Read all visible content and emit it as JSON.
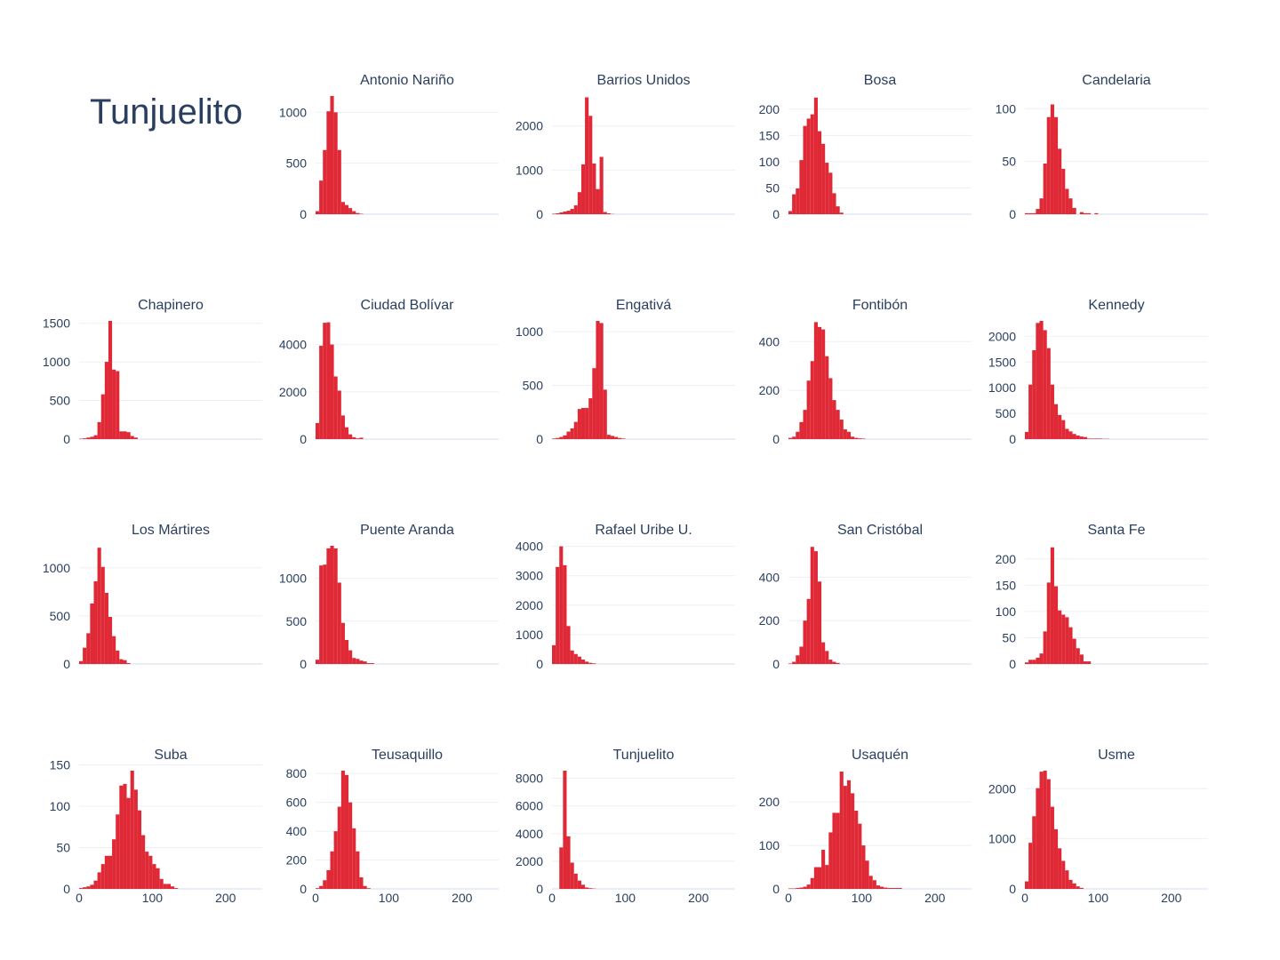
{
  "chart_data": {
    "type": "bar",
    "subtype": "histogram-grid",
    "title": "Tunjuelito",
    "colors": {
      "bar": "#e02936",
      "text": "#2a3f5f",
      "grid": "#ebf0f8"
    },
    "xlim": [
      0,
      250
    ],
    "bin_width": 5,
    "x_ticks": [
      0,
      100,
      200
    ],
    "x_tick_labels": [
      "0",
      "100",
      "200"
    ],
    "panels": [
      {
        "title": "Antonio Nariño",
        "ylim": [
          0,
          1160
        ],
        "y_ticks": [
          0,
          500,
          1000
        ],
        "y_tick_labels": [
          "0",
          "500",
          "1000"
        ],
        "bin_start": 0,
        "counts": [
          30,
          330,
          630,
          1010,
          1160,
          1000,
          630,
          120,
          90,
          60,
          30,
          12,
          4
        ]
      },
      {
        "title": "Barrios Unidos",
        "ylim": [
          0,
          2680
        ],
        "y_ticks": [
          0,
          1000,
          2000
        ],
        "y_tick_labels": [
          "0",
          "1000",
          "2000"
        ],
        "bin_start": 0,
        "counts": [
          10,
          20,
          40,
          60,
          80,
          120,
          200,
          500,
          1130,
          2650,
          2230,
          1150,
          570,
          1300,
          50,
          20,
          5
        ]
      },
      {
        "title": "Bosa",
        "ylim": [
          0,
          225
        ],
        "y_ticks": [
          0,
          50,
          100,
          150,
          200
        ],
        "y_tick_labels": [
          "0",
          "50",
          "100",
          "150",
          "200"
        ],
        "bin_start": 0,
        "counts": [
          6,
          38,
          49,
          103,
          168,
          182,
          190,
          222,
          158,
          134,
          98,
          79,
          40,
          15,
          3
        ]
      },
      {
        "title": "Candelaria",
        "ylim": [
          0,
          112
        ],
        "y_ticks": [
          0,
          50,
          100
        ],
        "y_tick_labels": [
          "0",
          "50",
          "100"
        ],
        "bin_start": 0,
        "counts": [
          1,
          1,
          1,
          5,
          15,
          48,
          92,
          104,
          92,
          62,
          43,
          24,
          15,
          6,
          0,
          2,
          1,
          1,
          0,
          1
        ]
      },
      {
        "title": "Chapinero",
        "ylim": [
          0,
          1530
        ],
        "y_ticks": [
          0,
          500,
          1000,
          1500
        ],
        "y_tick_labels": [
          "0",
          "500",
          "1000",
          "1500"
        ],
        "bin_start": 0,
        "counts": [
          5,
          10,
          20,
          30,
          50,
          220,
          580,
          1000,
          1530,
          900,
          880,
          100,
          100,
          90,
          40,
          20
        ]
      },
      {
        "title": "Ciudad Bolívar",
        "ylim": [
          0,
          5000
        ],
        "y_ticks": [
          0,
          2000,
          4000
        ],
        "y_tick_labels": [
          "0",
          "2000",
          "4000"
        ],
        "bin_start": 0,
        "counts": [
          680,
          3950,
          4920,
          4940,
          4000,
          2650,
          2050,
          1000,
          500,
          200,
          80,
          30,
          60
        ]
      },
      {
        "title": "Engativá",
        "ylim": [
          0,
          1100
        ],
        "y_ticks": [
          0,
          500,
          1000
        ],
        "y_tick_labels": [
          "0",
          "500",
          "1000"
        ],
        "bin_start": 0,
        "counts": [
          5,
          10,
          20,
          35,
          70,
          100,
          160,
          280,
          290,
          290,
          380,
          660,
          1100,
          1080,
          460,
          40,
          30,
          20,
          10,
          5
        ]
      },
      {
        "title": "Fontibón",
        "ylim": [
          0,
          485
        ],
        "y_ticks": [
          0,
          200,
          400
        ],
        "y_tick_labels": [
          "0",
          "200",
          "400"
        ],
        "bin_start": 0,
        "counts": [
          5,
          10,
          30,
          70,
          120,
          240,
          320,
          480,
          460,
          450,
          340,
          250,
          160,
          120,
          80,
          40,
          30,
          10,
          5,
          3,
          2
        ]
      },
      {
        "title": "Kennedy",
        "ylim": [
          0,
          2300
        ],
        "y_ticks": [
          0,
          500,
          1000,
          1500,
          2000
        ],
        "y_tick_labels": [
          "0",
          "500",
          "1000",
          "1500",
          "2000"
        ],
        "bin_start": 0,
        "counts": [
          140,
          1060,
          1730,
          2260,
          2300,
          2120,
          1770,
          1060,
          680,
          470,
          370,
          200,
          150,
          100,
          70,
          50,
          40,
          10,
          10,
          10,
          10,
          5,
          5
        ]
      },
      {
        "title": "Los Mártires",
        "ylim": [
          0,
          1230
        ],
        "y_ticks": [
          0,
          500,
          1000
        ],
        "y_tick_labels": [
          "0",
          "500",
          "1000"
        ],
        "bin_start": 0,
        "counts": [
          30,
          170,
          320,
          630,
          860,
          1210,
          1010,
          740,
          490,
          290,
          140,
          50,
          40,
          10
        ]
      },
      {
        "title": "Puente Aranda",
        "ylim": [
          0,
          1380
        ],
        "y_ticks": [
          0,
          500,
          1000
        ],
        "y_tick_labels": [
          "0",
          "500",
          "1000"
        ],
        "bin_start": 0,
        "counts": [
          50,
          1150,
          1160,
          1350,
          1380,
          1350,
          950,
          480,
          280,
          160,
          70,
          60,
          40,
          30,
          10,
          10
        ]
      },
      {
        "title": "Rafael Uribe U.",
        "ylim": [
          0,
          4020
        ],
        "y_ticks": [
          0,
          1000,
          2000,
          3000,
          4000
        ],
        "y_tick_labels": [
          "0",
          "1000",
          "2000",
          "3000",
          "4000"
        ],
        "bin_start": 0,
        "counts": [
          640,
          3300,
          4000,
          3360,
          1290,
          460,
          340,
          250,
          150,
          80,
          40,
          20
        ]
      },
      {
        "title": "San Cristóbal",
        "ylim": [
          0,
          545
        ],
        "y_ticks": [
          0,
          200,
          400
        ],
        "y_tick_labels": [
          "0",
          "200",
          "400"
        ],
        "bin_start": 0,
        "counts": [
          2,
          10,
          40,
          80,
          200,
          300,
          540,
          520,
          380,
          100,
          60,
          20,
          10,
          5
        ]
      },
      {
        "title": "Santa Fe",
        "ylim": [
          0,
          225
        ],
        "y_ticks": [
          0,
          50,
          100,
          150,
          200
        ],
        "y_tick_labels": [
          "0",
          "50",
          "100",
          "150",
          "200"
        ],
        "bin_start": 0,
        "counts": [
          3,
          8,
          8,
          12,
          20,
          62,
          155,
          222,
          148,
          102,
          94,
          89,
          70,
          48,
          30,
          18,
          5,
          5
        ]
      },
      {
        "title": "Suba",
        "ylim": [
          0,
          143
        ],
        "y_ticks": [
          0,
          50,
          100,
          150
        ],
        "y_tick_labels": [
          "0",
          "50",
          "100",
          "150"
        ],
        "bin_start": 0,
        "counts": [
          1,
          2,
          3,
          5,
          10,
          20,
          30,
          40,
          40,
          60,
          90,
          125,
          127,
          110,
          143,
          120,
          95,
          65,
          45,
          40,
          30,
          25,
          12,
          6,
          6,
          3,
          1
        ]
      },
      {
        "title": "Teusaquillo",
        "ylim": [
          0,
          820
        ],
        "y_ticks": [
          0,
          200,
          400,
          600,
          800
        ],
        "y_tick_labels": [
          "0",
          "200",
          "400",
          "600",
          "800"
        ],
        "bin_start": 0,
        "counts": [
          5,
          20,
          60,
          130,
          260,
          400,
          570,
          820,
          790,
          600,
          420,
          260,
          80,
          20,
          5
        ]
      },
      {
        "title": "Tunjuelito",
        "ylim": [
          0,
          8550
        ],
        "y_ticks": [
          0,
          2000,
          4000,
          6000,
          8000
        ],
        "y_tick_labels": [
          "0",
          "2000",
          "4000",
          "6000",
          "8000"
        ],
        "bin_start": 0,
        "counts": [
          0,
          0,
          3000,
          8550,
          3800,
          1900,
          1100,
          600,
          300,
          100,
          50,
          20
        ]
      },
      {
        "title": "Usaquén",
        "ylim": [
          0,
          272
        ],
        "y_ticks": [
          0,
          100,
          200
        ],
        "y_tick_labels": [
          "0",
          "100",
          "200"
        ],
        "bin_start": 0,
        "counts": [
          1,
          1,
          2,
          3,
          5,
          10,
          25,
          50,
          50,
          90,
          55,
          130,
          175,
          175,
          270,
          237,
          250,
          220,
          180,
          150,
          100,
          65,
          30,
          20,
          8,
          5,
          3,
          2,
          2,
          2,
          2
        ]
      },
      {
        "title": "Usme",
        "ylim": [
          0,
          2360
        ],
        "y_ticks": [
          0,
          1000,
          2000
        ],
        "y_tick_labels": [
          "0",
          "1000",
          "2000"
        ],
        "bin_start": 0,
        "counts": [
          150,
          920,
          1450,
          2010,
          2340,
          2360,
          2190,
          1640,
          1190,
          810,
          560,
          370,
          180,
          110,
          50,
          20
        ]
      }
    ]
  }
}
